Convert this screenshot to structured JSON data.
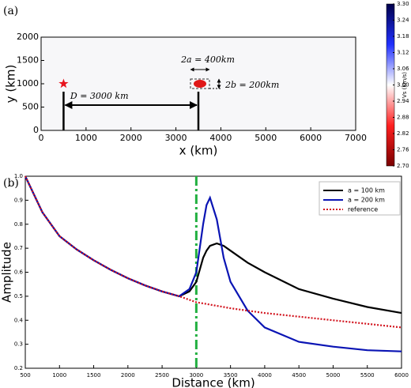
{
  "chart_data": [
    {
      "type": "map",
      "panel": "(a)",
      "xlabel": "x (km)",
      "ylabel": "y (km)",
      "xlim": [
        0,
        7000
      ],
      "xticks": [
        0,
        1000,
        2000,
        3000,
        4000,
        5000,
        6000,
        7000
      ],
      "ylim": [
        0,
        2000
      ],
      "yticks": [
        0,
        500,
        1000,
        1500,
        2000
      ],
      "points": {
        "x": [
          500,
          3500
        ],
        "y": [
          1000,
          1000
        ]
      },
      "annotations": [
        "2a = 400km",
        "2b = 200km",
        "D = 3000 km"
      ],
      "colorbar": {
        "label": "Vs (km/s)",
        "lim": [
          2.7,
          3.3
        ],
        "ticks": [
          {
            "value": 3.3,
            "label": "3.30"
          },
          3.24,
          3.18,
          3.12,
          3.06,
          {
            "value": 3.0,
            "label": "3.00"
          },
          2.94,
          2.88,
          2.82,
          2.76,
          {
            "value": 2.7,
            "label": "2.70"
          }
        ]
      }
    },
    {
      "type": "line",
      "panel": "(b)",
      "xlabel": "Distance (km)",
      "ylabel": "Amplitude",
      "x": [
        500,
        750,
        1000,
        1250,
        1500,
        1750,
        2000,
        2250,
        2500,
        2750,
        2900,
        3000,
        3100,
        3150,
        3200,
        3300,
        3400,
        3500,
        3750,
        4000,
        4500,
        5000,
        5500,
        6000
      ],
      "series": [
        {
          "name": "a = 100 km",
          "color": "#000000",
          "style": "solid",
          "values": [
            1.0,
            0.85,
            0.75,
            0.695,
            0.65,
            0.61,
            0.575,
            0.545,
            0.52,
            0.5,
            0.52,
            0.56,
            0.66,
            0.69,
            0.71,
            0.72,
            0.71,
            0.69,
            0.64,
            0.6,
            0.53,
            0.49,
            0.455,
            0.43
          ]
        },
        {
          "name": "a = 200 km",
          "color": "#0a14b4",
          "style": "solid",
          "values": [
            1.0,
            0.85,
            0.75,
            0.695,
            0.65,
            0.61,
            0.575,
            0.545,
            0.52,
            0.5,
            0.53,
            0.6,
            0.8,
            0.88,
            0.91,
            0.82,
            0.66,
            0.56,
            0.44,
            0.37,
            0.31,
            0.29,
            0.275,
            0.27
          ]
        },
        {
          "name": "reference",
          "color": "#d2141e",
          "style": "dotted",
          "values": [
            1.0,
            0.85,
            0.75,
            0.695,
            0.65,
            0.61,
            0.575,
            0.545,
            0.52,
            0.5,
            0.485,
            0.475,
            0.47,
            0.468,
            0.465,
            0.46,
            0.455,
            0.45,
            0.44,
            0.43,
            0.415,
            0.4,
            0.385,
            0.37
          ]
        }
      ],
      "vline": 3000,
      "vline_color": "#22b040",
      "xlim": [
        500,
        6000
      ],
      "xticks": [
        500,
        1000,
        1500,
        2000,
        2500,
        3000,
        3500,
        4000,
        4500,
        5000,
        5500,
        6000
      ],
      "ylim": [
        0.2,
        1.0
      ],
      "yticks": [
        0.2,
        0.3,
        0.4,
        0.5,
        0.6,
        0.7,
        0.8,
        0.9,
        {
          "value": 1.0,
          "label": "1.0"
        }
      ],
      "legend": "upper right"
    }
  ]
}
